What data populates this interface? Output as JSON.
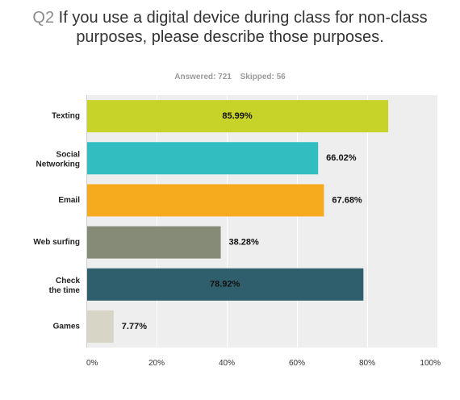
{
  "question": {
    "number": "Q2",
    "text": "If you use a digital device during class for non-class purposes, please describe those purposes."
  },
  "stats": {
    "answered": "Answered: 721",
    "skipped": "Skipped: 56"
  },
  "chart_data": {
    "type": "bar",
    "orientation": "horizontal",
    "categories": [
      "Texting",
      "Social Networking",
      "Email",
      "Web surfing",
      "Check the time",
      "Games"
    ],
    "values": [
      85.99,
      66.02,
      67.68,
      38.28,
      78.92,
      7.77
    ],
    "value_labels": [
      "85.99%",
      "66.02%",
      "67.68%",
      "38.28%",
      "78.92%",
      "7.77%"
    ],
    "colors": [
      "#c8d32a",
      "#32bec0",
      "#f6ab1f",
      "#868b77",
      "#2f5f6c",
      "#d7d6c6"
    ],
    "xlim": [
      0,
      100
    ],
    "xticks": [
      0,
      20,
      40,
      60,
      80,
      100
    ],
    "xtick_labels": [
      "0%",
      "20%",
      "40%",
      "60%",
      "80%",
      "100%"
    ],
    "grid": true
  }
}
